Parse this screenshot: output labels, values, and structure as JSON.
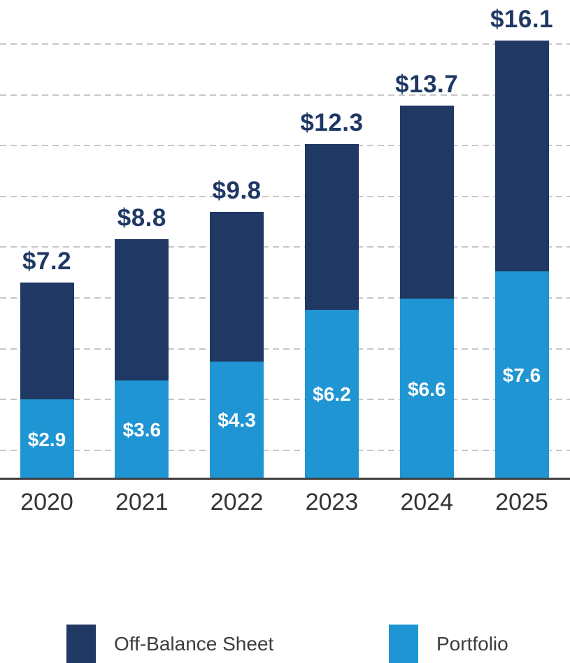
{
  "chart_data": {
    "type": "bar",
    "stacked": true,
    "title": "",
    "categories": [
      "2020",
      "2021",
      "2022",
      "2023",
      "2024",
      "2025"
    ],
    "series": [
      {
        "name": "Portfolio",
        "color": "#2095D3",
        "label_color": "#FFFFFF",
        "values": [
          2.9,
          3.6,
          4.3,
          6.2,
          6.6,
          7.6
        ],
        "labels": [
          "$2.9",
          "$3.6",
          "$4.3",
          "$6.2",
          "$6.6",
          "$7.6"
        ]
      },
      {
        "name": "Off-Balance Sheet",
        "color": "#1F3864",
        "values": [
          4.3,
          5.2,
          5.5,
          6.1,
          7.1,
          8.5
        ]
      }
    ],
    "totals": [
      7.2,
      8.8,
      9.8,
      12.3,
      13.7,
      16.1
    ],
    "total_labels": [
      "$7.2",
      "$8.8",
      "$9.8",
      "$12.3",
      "$13.7",
      "$16.1"
    ],
    "total_label_color": "#1F3864",
    "ylim": [
      0,
      16.5
    ],
    "grid": "horizontal-dashed",
    "gridline_color": "#C7C7C7",
    "axis_color": "#404040",
    "legend_position": "bottom"
  },
  "legend": {
    "items": [
      {
        "label": "Off-Balance Sheet",
        "color": "#1F3864"
      },
      {
        "label": "Portfolio",
        "color": "#2095D3"
      }
    ]
  }
}
